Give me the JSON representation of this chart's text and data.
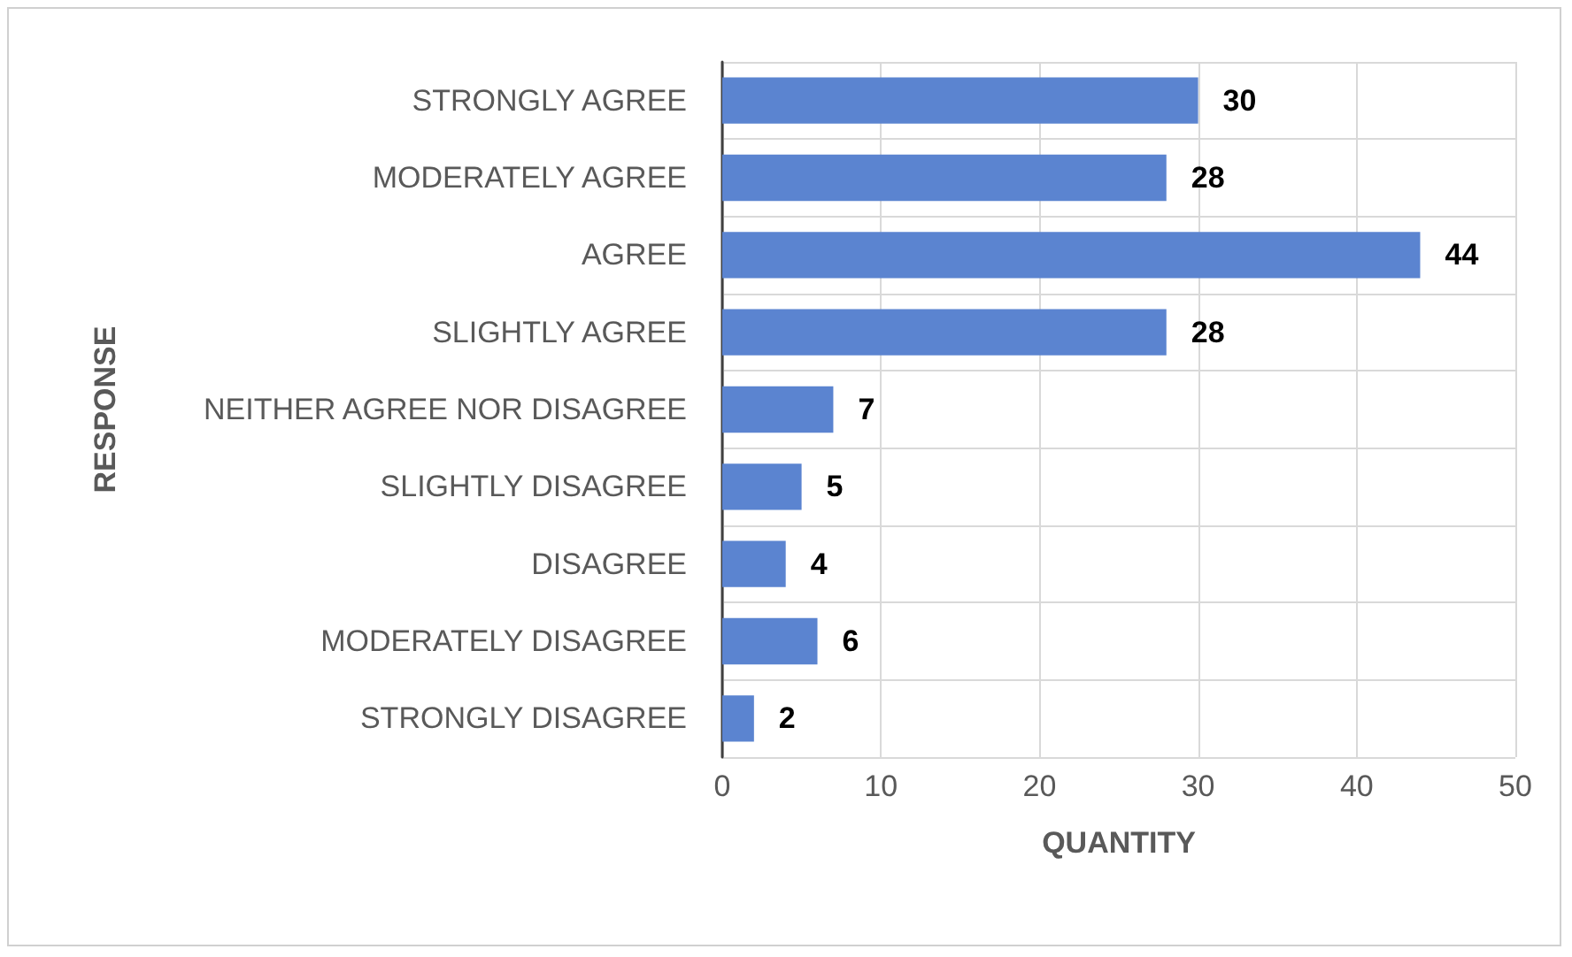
{
  "chart_data": {
    "type": "bar",
    "orientation": "horizontal",
    "xlabel": "QUANTITY",
    "ylabel": "RESPONSE",
    "categories": [
      "STRONGLY AGREE",
      "MODERATELY AGREE",
      "AGREE",
      "SLIGHTLY AGREE",
      "NEITHER AGREE NOR DISAGREE",
      "SLIGHTLY DISAGREE",
      "DISAGREE",
      "MODERATELY DISAGREE",
      "STRONGLY DISAGREE"
    ],
    "values": [
      30,
      28,
      44,
      28,
      7,
      5,
      4,
      6,
      2
    ],
    "color": "#5b84d0",
    "xlim": [
      0,
      50
    ],
    "xticks": [
      0,
      10,
      20,
      30,
      40,
      50
    ],
    "grid": true,
    "data_labels": true
  }
}
